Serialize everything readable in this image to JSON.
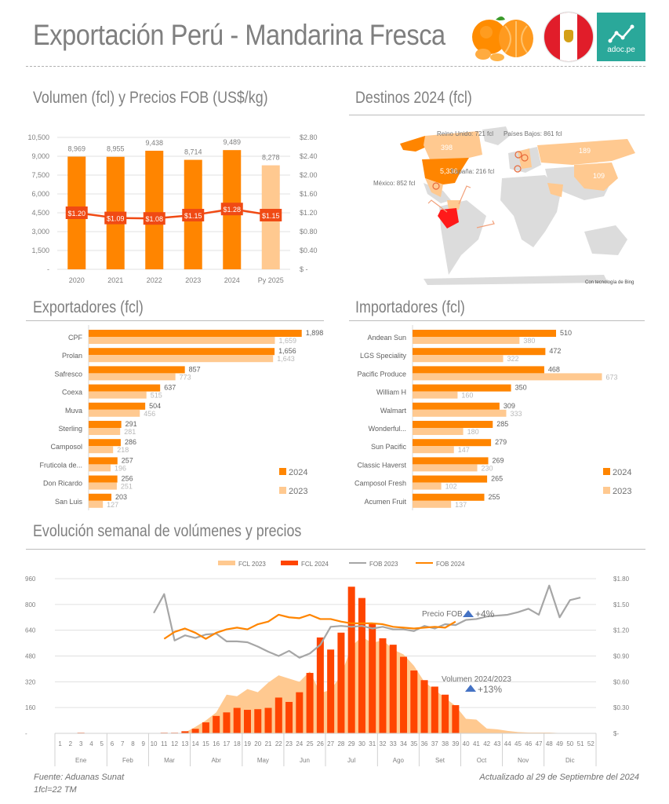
{
  "header": {
    "title": "Exportación Perú - Mandarina Fresca",
    "logos": [
      "mandarin-fruit-icon",
      "peru-flag-icon",
      "adoc-logo"
    ],
    "adoc_text": "adoc.pe"
  },
  "sections": {
    "volume_prices": "Volumen (fcl) y Precios FOB (US$/kg)",
    "destinations": "Destinos 2024 (fcl)",
    "exporters": "Exportadores (fcl)",
    "importers": "Importadores (fcl)",
    "weekly": "Evolución semanal de volúmenes y precios"
  },
  "colors": {
    "orange": "#ff8500",
    "light_orange": "#ffc990",
    "red_orange": "#ff4500",
    "price_line": "#f04a14",
    "gray_line": "#a6a6a6",
    "fob2024_line": "#ff8500",
    "triangle_blue": "#4472c4",
    "peru_red": "#ff1a1a",
    "map_gray": "#dcdcdc"
  },
  "map": {
    "labels": [
      {
        "country": "Estados Unidos",
        "value": "5,336"
      },
      {
        "country": "Canadá",
        "value": "398"
      },
      {
        "country": "Rusia",
        "value": "189"
      },
      {
        "country": "China",
        "value": "109"
      }
    ],
    "callouts": [
      "Reino Unido: 721 fcl",
      "Países Bajos: 861 fcl",
      "España: 216 fcl",
      "México: 852 fcl"
    ],
    "credit": "Con tecnología de Bing"
  },
  "legend_years": {
    "y2024": "2024",
    "y2023": "2023"
  },
  "chart_data": [
    {
      "type": "bar",
      "id": "annual",
      "title": "Volumen (fcl) y Precios FOB (US$/kg)",
      "categories": [
        "2020",
        "2021",
        "2022",
        "2023",
        "2024",
        "Py 2025"
      ],
      "series": [
        {
          "name": "Volumen (fcl)",
          "type": "bar",
          "values": [
            8969,
            8955,
            9438,
            8714,
            9489,
            8278
          ],
          "labels": [
            "8,969",
            "8,955",
            "9,438",
            "8,714",
            "9,489",
            "8,278"
          ]
        },
        {
          "name": "Precio FOB (US$/kg)",
          "type": "line",
          "axis": "right",
          "values": [
            1.2,
            1.09,
            1.08,
            1.15,
            1.28,
            1.15
          ],
          "labels": [
            "$1.20",
            "$1.09",
            "$1.08",
            "$1.15",
            "$1.28",
            "$1.15"
          ]
        }
      ],
      "ylim": [
        0,
        10500
      ],
      "yticks": [
        "-",
        "1,500",
        "3,000",
        "4,500",
        "6,000",
        "7,500",
        "9,000",
        "10,500"
      ],
      "y2lim": [
        0,
        2.8
      ],
      "y2ticks": [
        "$ -",
        "$0.40",
        "$0.80",
        "$1.20",
        "$1.60",
        "$2.00",
        "$2.40",
        "$2.80"
      ],
      "grid": true
    },
    {
      "type": "bar",
      "id": "exporters",
      "orientation": "horizontal",
      "title": "Exportadores (fcl)",
      "categories": [
        "CPF",
        "Prolan",
        "Safresco",
        "Coexa",
        "Muva",
        "Sterling",
        "Camposol",
        "Fruticola de...",
        "Don Ricardo",
        "San Luis"
      ],
      "series": [
        {
          "name": "2024",
          "values": [
            1898,
            1656,
            857,
            637,
            504,
            291,
            286,
            257,
            256,
            203
          ],
          "labels": [
            "1,898",
            "1,656",
            "857",
            "637",
            "504",
            "291",
            "286",
            "257",
            "256",
            "203"
          ]
        },
        {
          "name": "2023",
          "values": [
            1659,
            1643,
            773,
            515,
            456,
            281,
            218,
            196,
            251,
            127
          ],
          "labels": [
            "1,659",
            "1,643",
            "773",
            "515",
            "456",
            "281",
            "218",
            "196",
            "251",
            "127"
          ]
        }
      ],
      "xlim": [
        0,
        1900
      ],
      "legend": "right"
    },
    {
      "type": "bar",
      "id": "importers",
      "orientation": "horizontal",
      "title": "Importadores (fcl)",
      "categories": [
        "Andean Sun",
        "LGS Speciality",
        "Pacific Produce",
        "William H",
        "Walmart",
        "Wonderful...",
        "Sun Pacific",
        "Classic Haverst",
        "Camposol Fresh",
        "Acumen Fruit"
      ],
      "series": [
        {
          "name": "2024",
          "values": [
            510,
            472,
            468,
            350,
            309,
            285,
            279,
            269,
            265,
            255
          ],
          "labels": [
            "510",
            "472",
            "468",
            "350",
            "309",
            "285",
            "279",
            "269",
            "265",
            "255"
          ]
        },
        {
          "name": "2023",
          "values": [
            380,
            322,
            673,
            160,
            333,
            180,
            147,
            230,
            102,
            137
          ],
          "labels": [
            "380",
            "322",
            "673",
            "160",
            "333",
            "180",
            "147",
            "230",
            "102",
            "137"
          ]
        }
      ],
      "xlim": [
        0,
        680
      ],
      "legend": "right"
    },
    {
      "type": "bar",
      "id": "weekly",
      "title": "Evolución semanal de volúmenes y precios",
      "x": [
        1,
        2,
        3,
        4,
        5,
        6,
        7,
        8,
        9,
        10,
        11,
        12,
        13,
        14,
        15,
        16,
        17,
        18,
        19,
        20,
        21,
        22,
        23,
        24,
        25,
        26,
        27,
        28,
        29,
        30,
        31,
        32,
        33,
        34,
        35,
        36,
        37,
        38,
        39,
        40,
        41,
        42,
        43,
        44,
        45,
        46,
        47,
        48,
        49,
        50,
        51,
        52
      ],
      "months": [
        {
          "label": "Ene",
          "weeks": 5
        },
        {
          "label": "Feb",
          "weeks": 4
        },
        {
          "label": "Mar",
          "weeks": 4
        },
        {
          "label": "Abr",
          "weeks": 5
        },
        {
          "label": "May",
          "weeks": 4
        },
        {
          "label": "Jun",
          "weeks": 4
        },
        {
          "label": "Jul",
          "weeks": 5
        },
        {
          "label": "Ago",
          "weeks": 4
        },
        {
          "label": "Set",
          "weeks": 4
        },
        {
          "label": "Oct",
          "weeks": 4
        },
        {
          "label": "Nov",
          "weeks": 4
        },
        {
          "label": "Dic",
          "weeks": 5
        }
      ],
      "series": [
        {
          "name": "FCL 2023",
          "type": "area",
          "values": [
            0,
            0,
            0,
            0,
            0,
            0,
            0,
            0,
            0,
            0,
            0,
            0,
            5,
            40,
            80,
            130,
            240,
            230,
            275,
            255,
            315,
            360,
            340,
            320,
            385,
            250,
            270,
            360,
            540,
            600,
            560,
            580,
            520,
            490,
            420,
            320,
            270,
            220,
            170,
            90,
            85,
            30,
            25,
            15,
            8,
            5,
            5,
            5,
            2,
            0,
            0,
            0
          ]
        },
        {
          "name": "FCL 2024",
          "type": "bar",
          "values": [
            0,
            0,
            4,
            0,
            0,
            0,
            0,
            0,
            0,
            0,
            4,
            4,
            13,
            28,
            68,
            108,
            130,
            158,
            146,
            150,
            158,
            222,
            195,
            255,
            375,
            595,
            520,
            625,
            910,
            840,
            680,
            590,
            550,
            475,
            390,
            330,
            290,
            240,
            175,
            null,
            null,
            null,
            null,
            null,
            null,
            null,
            null,
            null,
            null,
            null,
            null,
            null
          ]
        },
        {
          "name": "FOB 2023",
          "type": "line",
          "axis": "right",
          "values": [
            null,
            null,
            null,
            null,
            null,
            null,
            null,
            null,
            null,
            1.4,
            1.62,
            1.08,
            1.14,
            1.11,
            1.15,
            1.16,
            1.07,
            1.07,
            1.06,
            1.01,
            0.95,
            0.9,
            0.96,
            0.88,
            0.93,
            1.03,
            1.24,
            1.25,
            1.24,
            1.25,
            1.22,
            1.24,
            1.21,
            1.21,
            1.19,
            1.25,
            1.22,
            1.27,
            1.26,
            1.32,
            1.33,
            1.36,
            1.37,
            1.38,
            1.41,
            1.45,
            1.38,
            1.72,
            1.35,
            1.55,
            1.58,
            null
          ]
        },
        {
          "name": "FOB 2024",
          "type": "line",
          "axis": "right",
          "values": [
            null,
            null,
            null,
            null,
            null,
            null,
            null,
            null,
            null,
            null,
            1.1,
            1.18,
            1.22,
            1.17,
            1.1,
            1.17,
            1.21,
            1.23,
            1.21,
            1.27,
            1.3,
            1.38,
            1.35,
            1.34,
            1.38,
            1.33,
            1.33,
            1.3,
            1.28,
            1.28,
            1.28,
            1.27,
            1.24,
            1.23,
            1.22,
            1.23,
            1.24,
            1.23,
            1.3,
            null,
            null,
            null,
            null,
            null,
            null,
            null,
            null,
            null,
            null,
            null,
            null,
            null
          ]
        }
      ],
      "ylim": [
        0,
        960
      ],
      "yticks": [
        "-",
        "160",
        "320",
        "480",
        "640",
        "800",
        "960"
      ],
      "y2lim": [
        0,
        1.8
      ],
      "y2ticks": [
        "$-",
        "$0.30",
        "$0.60",
        "$0.90",
        "$1.20",
        "$1.50",
        "$1.80"
      ],
      "legend": "top",
      "annotations": [
        {
          "text": "Precio FOB",
          "delta": "+4%"
        },
        {
          "text": "Volumen 2024/2023",
          "delta": "+13%"
        }
      ],
      "grid": true
    }
  ],
  "footer": {
    "source": "Fuente: Aduanas Sunat",
    "unit": "1fcl=22 TM",
    "updated": "Actualizado al 29 de Septiembre del 2024"
  }
}
